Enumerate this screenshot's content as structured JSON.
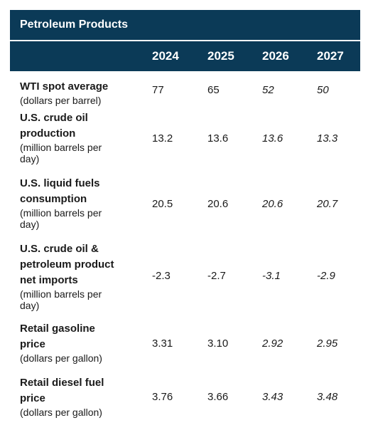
{
  "table": {
    "title": "Petroleum Products",
    "years": [
      "2024",
      "2025",
      "2026",
      "2027"
    ],
    "rows": [
      {
        "label_lines": [
          "WTI spot average"
        ],
        "unit_lines": [
          "(dollars per barrel)"
        ],
        "values": [
          "77",
          "65",
          "52",
          "50"
        ]
      },
      {
        "label_lines": [
          "U.S. crude oil",
          "production"
        ],
        "unit_lines": [
          "(million barrels per",
          "day)"
        ],
        "values": [
          "13.2",
          "13.6",
          "13.6",
          "13.3"
        ]
      },
      {
        "label_lines": [
          "U.S. liquid fuels",
          "consumption"
        ],
        "unit_lines": [
          "(million barrels per",
          "day)"
        ],
        "values": [
          "20.5",
          "20.6",
          "20.6",
          "20.7"
        ]
      },
      {
        "label_lines": [
          "U.S. crude oil &",
          "petroleum product",
          "net imports"
        ],
        "unit_lines": [
          "(million barrels per",
          "day)"
        ],
        "values": [
          "-2.3",
          "-2.7",
          "-3.1",
          "-2.9"
        ]
      },
      {
        "label_lines": [
          "Retail gasoline",
          "price"
        ],
        "unit_lines": [
          "(dollars per gallon)"
        ],
        "values": [
          "3.31",
          "3.10",
          "2.92",
          "2.95"
        ]
      },
      {
        "label_lines": [
          "Retail diesel fuel",
          "price"
        ],
        "unit_lines": [
          "(dollars per gallon)"
        ],
        "values": [
          "3.76",
          "3.66",
          "3.43",
          "3.48"
        ]
      }
    ]
  }
}
